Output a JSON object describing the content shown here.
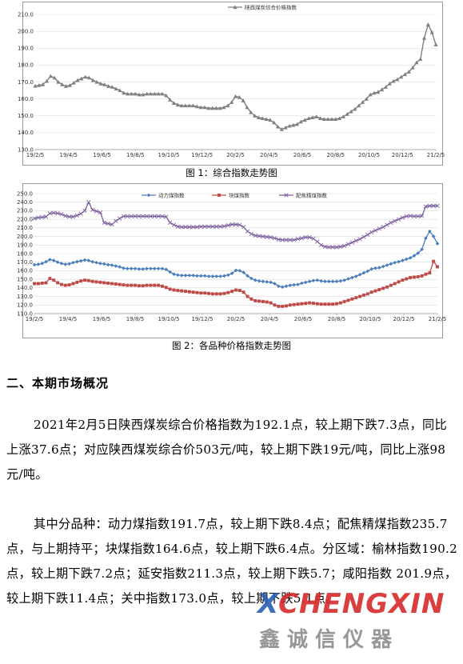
{
  "chart_data": [
    {
      "type": "line",
      "title": "",
      "xlabel": "",
      "ylabel": "",
      "ylim": [
        130,
        210
      ],
      "yticks": [
        130,
        140,
        150,
        160,
        170,
        180,
        190,
        200,
        210
      ],
      "x_tick_labels": [
        "19/2/5",
        "19/4/5",
        "19/6/5",
        "19/8/5",
        "19/10/5",
        "19/12/5",
        "20/2/5",
        "20/4/5",
        "20/6/5",
        "20/8/5",
        "20/10/5",
        "20/12/5",
        "21/2/5"
      ],
      "grid": "horizontal",
      "legend_position": "top",
      "series": [
        {
          "name": "陕西煤炭综合价格指数",
          "color": "#7f7f7f",
          "values": [
            167.7,
            168.0,
            168.5,
            170.5,
            173.5,
            172.5,
            170.0,
            168.5,
            167.5,
            168.0,
            169.5,
            171.0,
            172.0,
            173.0,
            172.5,
            171.0,
            170.0,
            169.0,
            168.5,
            167.5,
            167.0,
            166.0,
            165.0,
            163.5,
            163.0,
            163.0,
            163.0,
            162.5,
            162.5,
            163.0,
            163.0,
            163.0,
            163.0,
            163.0,
            162.0,
            159.5,
            157.5,
            156.5,
            156.0,
            156.0,
            156.0,
            156.0,
            155.5,
            155.0,
            155.0,
            154.5,
            154.5,
            154.5,
            154.5,
            155.0,
            156.0,
            158.0,
            161.5,
            161.0,
            159.0,
            155.0,
            152.0,
            150.0,
            149.0,
            148.5,
            148.0,
            147.5,
            146.0,
            143.5,
            142.0,
            143.0,
            144.0,
            144.5,
            145.0,
            146.5,
            147.5,
            148.5,
            149.0,
            149.5,
            148.5,
            148.0,
            148.0,
            148.0,
            148.0,
            148.5,
            149.5,
            151.0,
            152.5,
            154.0,
            156.0,
            158.0,
            160.0,
            162.5,
            163.5,
            164.0,
            165.5,
            167.0,
            169.0,
            170.5,
            171.5,
            173.0,
            174.5,
            176.0,
            178.5,
            181.5,
            183.5,
            196.0,
            204.0,
            199.4,
            192.1
          ]
        }
      ]
    },
    {
      "type": "line",
      "title": "",
      "xlabel": "",
      "ylabel": "",
      "ylim": [
        110,
        250
      ],
      "yticks": [
        110,
        120,
        130,
        140,
        150,
        160,
        170,
        180,
        190,
        200,
        210,
        220,
        230,
        240,
        250
      ],
      "x_tick_labels": [
        "19/2/5",
        "19/4/5",
        "19/6/5",
        "19/8/5",
        "19/10/5",
        "19/12/5",
        "20/2/5",
        "20/4/5",
        "20/6/5",
        "20/8/5",
        "20/10/5",
        "20/12/5",
        "21/2/5"
      ],
      "grid": "horizontal",
      "legend_position": "top",
      "series": [
        {
          "name": "动力煤指数",
          "color": "#4a7ebb",
          "values": [
            167.0,
            167.5,
            168.5,
            170.5,
            173.0,
            172.0,
            170.0,
            168.5,
            167.5,
            168.0,
            169.5,
            170.5,
            171.5,
            172.5,
            172.0,
            170.5,
            169.5,
            168.5,
            168.0,
            167.0,
            166.5,
            165.5,
            164.5,
            163.0,
            162.5,
            162.5,
            162.5,
            162.0,
            162.0,
            162.5,
            162.5,
            162.5,
            162.5,
            162.5,
            161.5,
            158.5,
            156.0,
            155.0,
            154.5,
            154.5,
            154.5,
            154.5,
            154.0,
            154.0,
            154.0,
            153.5,
            153.5,
            153.5,
            153.5,
            154.0,
            155.0,
            157.0,
            160.5,
            160.0,
            158.0,
            154.0,
            151.0,
            149.0,
            148.0,
            147.5,
            147.0,
            146.5,
            145.0,
            142.0,
            141.0,
            142.0,
            143.0,
            143.5,
            144.0,
            145.5,
            146.5,
            147.5,
            148.5,
            149.0,
            148.0,
            147.5,
            147.5,
            147.5,
            147.5,
            148.0,
            149.0,
            150.5,
            152.0,
            153.5,
            155.5,
            157.5,
            159.5,
            162.0,
            163.0,
            163.5,
            165.0,
            166.5,
            168.0,
            169.5,
            170.5,
            172.0,
            173.5,
            175.0,
            177.5,
            180.5,
            185.0,
            198.0,
            206.0,
            200.1,
            191.7
          ]
        },
        {
          "name": "块煤指数",
          "color": "#be4b48",
          "values": [
            145.0,
            145.0,
            145.5,
            146.0,
            151.0,
            149.0,
            146.0,
            144.0,
            143.0,
            143.5,
            145.0,
            146.5,
            148.0,
            149.0,
            148.5,
            147.5,
            147.0,
            146.5,
            146.0,
            145.5,
            145.0,
            144.5,
            144.0,
            143.5,
            143.0,
            143.0,
            143.0,
            142.5,
            142.5,
            143.0,
            143.0,
            143.0,
            143.0,
            142.0,
            140.5,
            138.5,
            137.5,
            137.0,
            136.5,
            136.0,
            135.5,
            135.0,
            134.5,
            134.0,
            134.0,
            133.5,
            133.0,
            133.0,
            133.0,
            133.5,
            134.5,
            136.0,
            137.5,
            137.0,
            135.0,
            130.0,
            127.0,
            125.0,
            124.5,
            124.0,
            123.5,
            122.5,
            120.0,
            118.5,
            118.5,
            119.0,
            120.0,
            120.5,
            121.0,
            121.5,
            122.0,
            122.5,
            122.0,
            121.5,
            121.0,
            121.0,
            121.0,
            121.0,
            121.5,
            122.5,
            124.0,
            125.5,
            127.0,
            128.5,
            130.0,
            131.5,
            133.0,
            135.0,
            136.5,
            138.0,
            139.5,
            141.0,
            143.0,
            145.0,
            147.0,
            149.0,
            150.5,
            152.0,
            152.5,
            153.0,
            154.0,
            156.0,
            157.5,
            171.0,
            164.6
          ]
        },
        {
          "name": "配焦精煤指数",
          "color": "#7d5fa0",
          "values": [
            221.0,
            222.0,
            222.5,
            223.0,
            227.0,
            227.5,
            227.0,
            226.0,
            224.0,
            223.0,
            223.0,
            224.5,
            226.5,
            230.0,
            240.0,
            231.0,
            229.5,
            228.0,
            216.0,
            215.0,
            214.0,
            218.0,
            221.0,
            223.5,
            223.5,
            223.5,
            223.5,
            223.5,
            223.5,
            223.5,
            223.5,
            223.5,
            223.5,
            223.5,
            223.0,
            216.0,
            213.5,
            211.5,
            211.0,
            211.0,
            211.0,
            211.0,
            211.0,
            211.5,
            211.5,
            211.5,
            211.5,
            211.5,
            211.5,
            212.0,
            213.0,
            214.0,
            214.0,
            213.5,
            211.0,
            206.0,
            203.0,
            201.0,
            200.5,
            200.0,
            199.5,
            199.0,
            198.0,
            196.5,
            196.0,
            196.0,
            196.0,
            196.0,
            197.0,
            198.0,
            199.0,
            199.0,
            197.5,
            194.0,
            190.0,
            188.0,
            187.5,
            187.5,
            187.5,
            188.0,
            189.0,
            191.0,
            193.0,
            195.0,
            197.0,
            199.5,
            202.0,
            205.0,
            207.0,
            209.0,
            211.0,
            213.5,
            216.0,
            218.0,
            220.0,
            222.0,
            223.5,
            224.0,
            223.5,
            223.5,
            224.0,
            235.0,
            235.7,
            235.7,
            235.7
          ]
        }
      ]
    }
  ],
  "captions": {
    "fig1": "图 1：综合指数走势图",
    "fig2": "图 2：各品种价格指数走势图"
  },
  "section": {
    "heading": "二、本期市场概况"
  },
  "paragraphs": [
    "2021年2月5日陕西煤炭综合价格指数为192.1点，较上期下跌7.3点，同比上涨37.6点；对应陕西煤炭综合价503元/吨，较上期下跌19元/吨，同比上涨98元/吨。",
    "其中分品种：动力煤指数191.7点，较上期下跌8.4点；配焦精煤指数235.7点，与上期持平；块煤指数164.6点，较上期下跌6.4点。分区域：榆林指数190.2点，较上期下跌7.2点；延安指数211.3点，较上期下跌5.7；咸阳指数 201.9点，较上期下跌11.4点；关中指数173.0点，较上期下跌5.1点。"
  ],
  "watermark": {
    "latin": "XCHENGXIN",
    "chinese": "鑫诚信仪器",
    "colors": [
      "#2b5fb6",
      "#d72b2b"
    ]
  }
}
